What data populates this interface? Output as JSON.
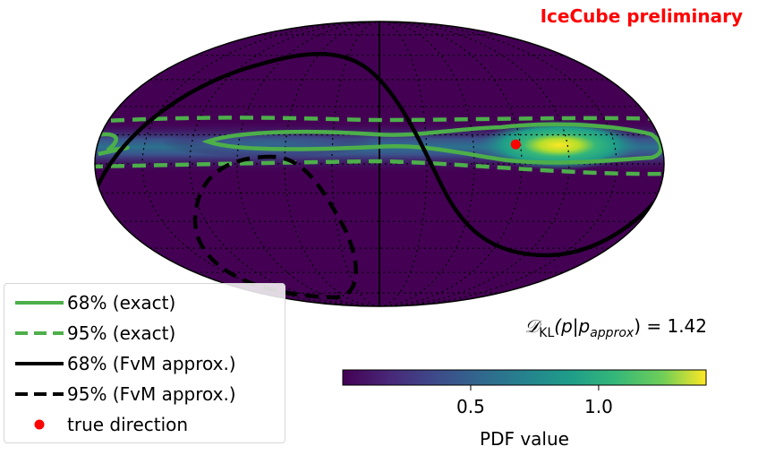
{
  "watermark": "IceCube preliminary",
  "kl_annotation": {
    "prefix": "𝒟",
    "sub": "KL",
    "body": "(p|p",
    "body_sub": "approx",
    "suffix": ") = 1.42",
    "value": 1.42
  },
  "chart_data": {
    "type": "heatmap",
    "projection": "mollweide",
    "title": "",
    "xlabel": "",
    "ylabel": "",
    "grid": true,
    "colormap": "viridis",
    "colorbar": {
      "label": "PDF value",
      "ticks": [
        0.5,
        1.0
      ],
      "tick_labels": [
        "0.5",
        "1.0"
      ],
      "range": [
        0.0,
        1.42
      ],
      "orientation": "horizontal"
    },
    "pdf_peak": {
      "lon_deg": 135,
      "lat_deg": 6,
      "value": 1.42
    },
    "series": [
      {
        "name": "68% (exact)",
        "style": "solid",
        "color": "#4daf4a",
        "lon_deg": [
          -140,
          -160,
          -180,
          -180,
          -160,
          -140
        ],
        "lat_deg": [
          -2,
          -4,
          -4,
          0,
          2,
          0
        ]
      },
      {
        "name": "95% (exact)",
        "style": "dashed",
        "color": "#4daf4a",
        "lon_deg": [
          -180,
          -90,
          0,
          90,
          180
        ],
        "lat_deg": [
          13,
          12,
          12,
          14,
          13
        ]
      },
      {
        "name": "68% (FvM approx.)",
        "style": "solid",
        "color": "#000000",
        "lon_deg": [
          -180,
          -140,
          -90,
          -40,
          10,
          60,
          110,
          160,
          180
        ],
        "lat_deg": [
          -20,
          25,
          52,
          55,
          10,
          -45,
          -55,
          -40,
          -25
        ]
      },
      {
        "name": "95% (FvM approx.)",
        "style": "dashed",
        "color": "#000000",
        "lon_deg": [
          -60,
          -90,
          -120,
          -110,
          -80,
          -55,
          -60
        ],
        "lat_deg": [
          -5,
          -15,
          -40,
          -75,
          -72,
          -45,
          -5
        ]
      }
    ],
    "markers": [
      {
        "name": "true direction",
        "lon_deg": 87,
        "lat_deg": 10,
        "color": "#ff0000"
      }
    ],
    "legend_position": "lower-left"
  }
}
